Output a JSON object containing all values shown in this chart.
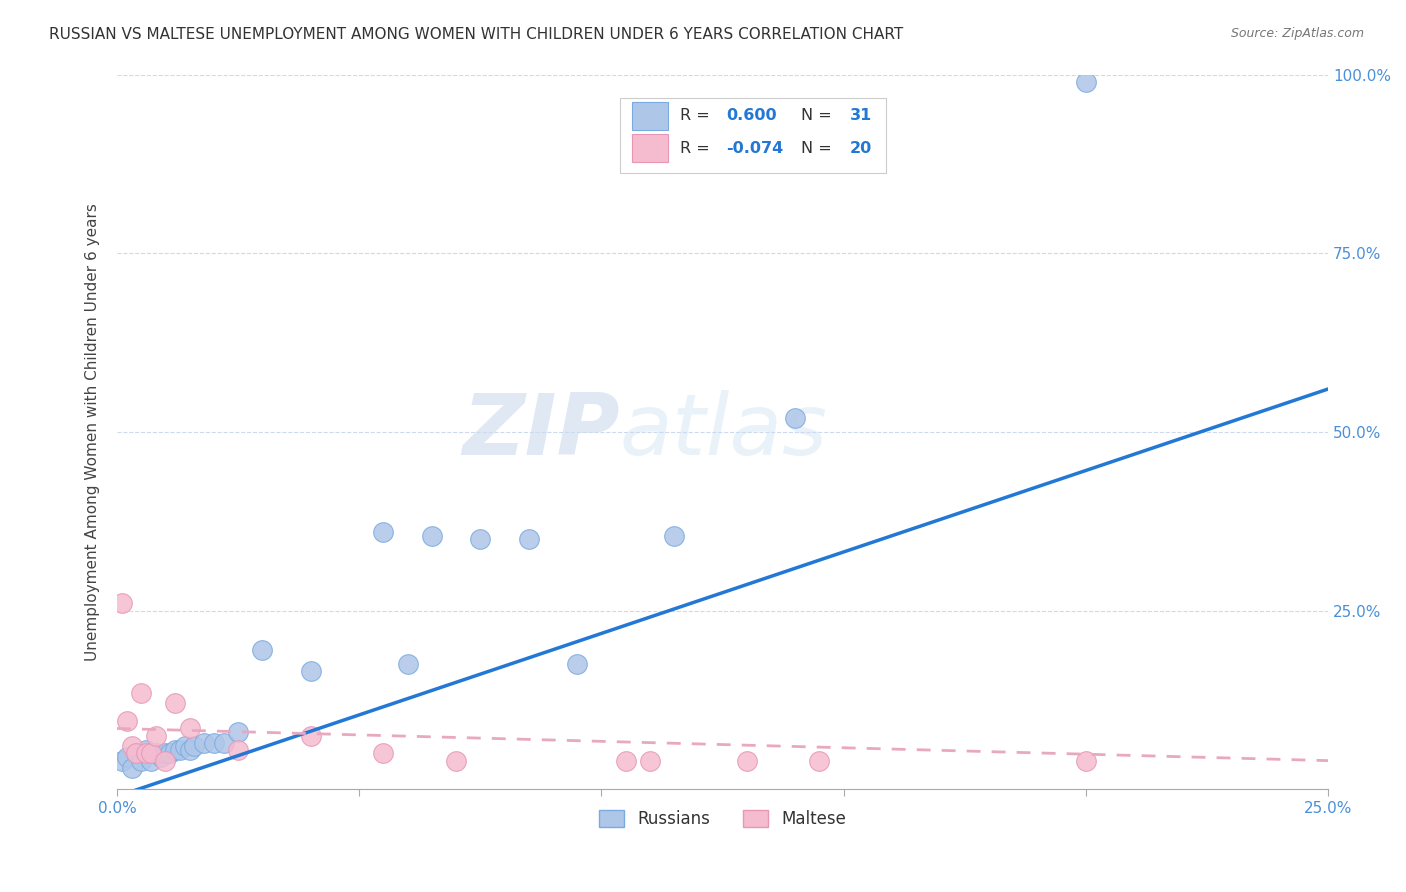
{
  "title": "RUSSIAN VS MALTESE UNEMPLOYMENT AMONG WOMEN WITH CHILDREN UNDER 6 YEARS CORRELATION CHART",
  "source": "Source: ZipAtlas.com",
  "ylabel": "Unemployment Among Women with Children Under 6 years",
  "xlim": [
    0,
    0.25
  ],
  "ylim": [
    0,
    1.0
  ],
  "yticks": [
    0.0,
    0.25,
    0.5,
    0.75,
    1.0
  ],
  "ytick_labels": [
    "",
    "25.0%",
    "50.0%",
    "75.0%",
    "100.0%"
  ],
  "xticks": [
    0.0,
    0.05,
    0.1,
    0.15,
    0.2,
    0.25
  ],
  "xtick_labels": [
    "0.0%",
    "",
    "",
    "",
    "",
    "25.0%"
  ],
  "russian_color": "#aec6e8",
  "maltese_color": "#f5bcd0",
  "russian_edge": "#7aabe0",
  "maltese_edge": "#e896b5",
  "trend_russian_color": "#2278d4",
  "trend_maltese_color": "#e8a8c0",
  "trend_maltese_dash": [
    5,
    4
  ],
  "russians_label": "Russians",
  "maltese_label": "Maltese",
  "r_russian": "0.600",
  "n_russian": "31",
  "r_maltese": "-0.074",
  "n_maltese": "20",
  "watermark_zip": "ZIP",
  "watermark_atlas": "atlas",
  "title_fontsize": 11,
  "source_fontsize": 9,
  "legend_color": "#2278d4",
  "legend_dark": "#333333",
  "russians_x": [
    0.001,
    0.002,
    0.003,
    0.004,
    0.005,
    0.006,
    0.007,
    0.008,
    0.009,
    0.01,
    0.011,
    0.012,
    0.013,
    0.014,
    0.015,
    0.016,
    0.018,
    0.02,
    0.022,
    0.025,
    0.03,
    0.04,
    0.055,
    0.06,
    0.065,
    0.075,
    0.085,
    0.095,
    0.115,
    0.14,
    0.2
  ],
  "russians_y": [
    0.04,
    0.045,
    0.03,
    0.05,
    0.04,
    0.055,
    0.04,
    0.05,
    0.045,
    0.05,
    0.05,
    0.055,
    0.055,
    0.06,
    0.055,
    0.06,
    0.065,
    0.065,
    0.065,
    0.08,
    0.195,
    0.165,
    0.36,
    0.175,
    0.355,
    0.35,
    0.35,
    0.175,
    0.355,
    0.52,
    0.99
  ],
  "maltese_x": [
    0.001,
    0.002,
    0.003,
    0.004,
    0.005,
    0.006,
    0.007,
    0.008,
    0.01,
    0.012,
    0.015,
    0.025,
    0.04,
    0.055,
    0.07,
    0.105,
    0.11,
    0.13,
    0.145,
    0.2
  ],
  "maltese_y": [
    0.26,
    0.095,
    0.06,
    0.05,
    0.135,
    0.05,
    0.05,
    0.075,
    0.04,
    0.12,
    0.085,
    0.055,
    0.075,
    0.05,
    0.04,
    0.04,
    0.04,
    0.04,
    0.04,
    0.04
  ],
  "trend_russian_x0": 0.0,
  "trend_russian_x1": 0.25,
  "trend_russian_y0": -0.01,
  "trend_russian_y1": 0.56,
  "trend_maltese_x0": 0.0,
  "trend_maltese_x1": 0.25,
  "trend_maltese_y0": 0.085,
  "trend_maltese_y1": 0.04
}
